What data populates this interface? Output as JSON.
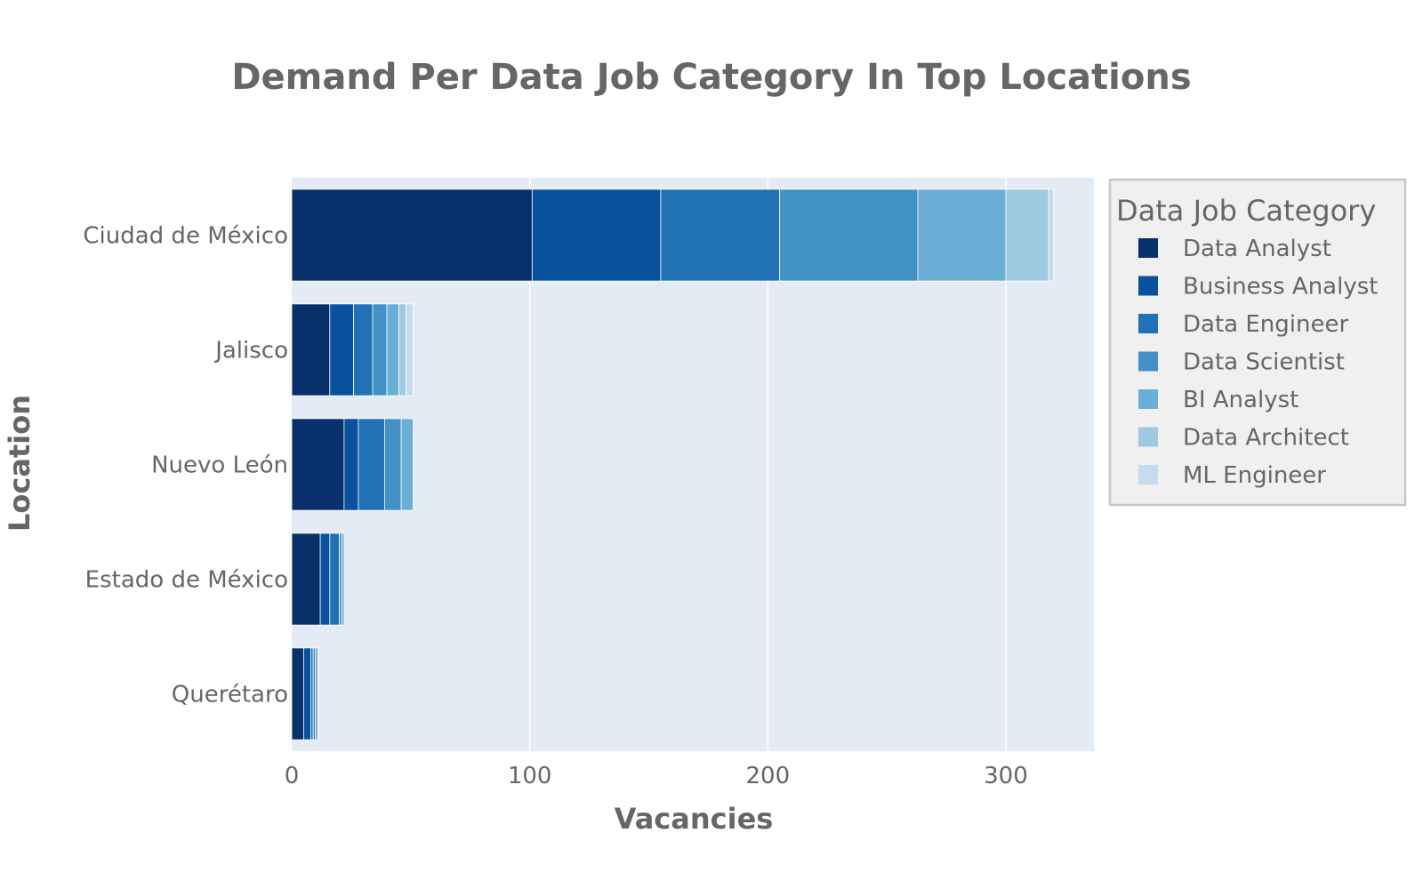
{
  "chart_data": {
    "type": "bar",
    "orientation": "horizontal",
    "barmode": "stack",
    "title": "Demand Per Data Job Category In Top Locations",
    "xlabel": "Vacancies",
    "ylabel": "Location",
    "xlim": [
      0,
      337
    ],
    "x_ticks": [
      0,
      100,
      200,
      300
    ],
    "grid": true,
    "legend_title": "Data Job Category",
    "legend_position": "right",
    "categories": [
      "Ciudad de México",
      "Jalisco",
      "Nuevo León",
      "Estado de México",
      "Querétaro"
    ],
    "series": [
      {
        "name": "Data Analyst",
        "color": "#08306b",
        "values": [
          101,
          16,
          22,
          12,
          5
        ]
      },
      {
        "name": "Business Analyst",
        "color": "#08519c",
        "values": [
          54,
          10,
          6,
          4,
          3
        ]
      },
      {
        "name": "Data Engineer",
        "color": "#2171b5",
        "values": [
          50,
          8,
          11,
          4,
          1
        ]
      },
      {
        "name": "Data Scientist",
        "color": "#4292c6",
        "values": [
          58,
          6,
          7,
          1,
          1
        ]
      },
      {
        "name": "BI Analyst",
        "color": "#6baed6",
        "values": [
          37,
          5,
          5,
          1,
          1
        ]
      },
      {
        "name": "Data Architect",
        "color": "#9ecae1",
        "values": [
          18,
          3,
          0,
          0,
          0
        ]
      },
      {
        "name": "ML Engineer",
        "color": "#c6dbef",
        "values": [
          2,
          3,
          0,
          0,
          0
        ]
      }
    ],
    "colors": {
      "plot_background": "#e5ebf5",
      "legend_background": "#f0f0f0",
      "legend_border": "#c8c8c8",
      "grid": "#ffffff",
      "text": "#666666"
    }
  }
}
